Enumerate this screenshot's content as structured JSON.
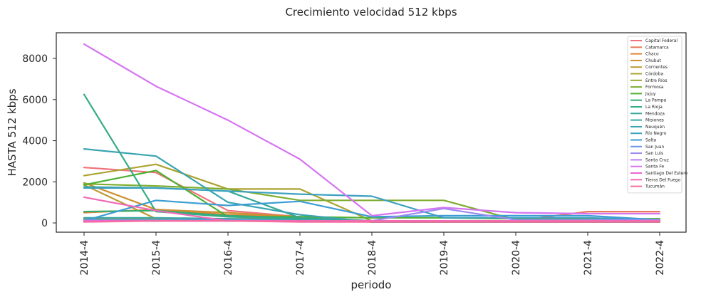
{
  "chart_data": {
    "type": "line",
    "title": "Crecimiento velocidad 512 kbps",
    "xlabel": "periodo",
    "ylabel": "HASTA 512 kbps",
    "ylim": [
      -450,
      9250
    ],
    "yticks": [
      0,
      2000,
      4000,
      6000,
      8000
    ],
    "grid": false,
    "legend_position": "top-right",
    "categories": [
      "2014-4",
      "2015-4",
      "2016-4",
      "2017-4",
      "2018-4",
      "2019-4",
      "2020-4",
      "2021-4",
      "2022-4"
    ],
    "series": [
      {
        "name": "Capital Federal",
        "color": "#f0727d",
        "values": [
          2700,
          2450,
          600,
          300,
          100,
          100,
          100,
          100,
          100
        ]
      },
      {
        "name": "Catamarca",
        "color": "#e8795a",
        "values": [
          100,
          100,
          100,
          100,
          100,
          100,
          100,
          550,
          550
        ]
      },
      {
        "name": "Chaco",
        "color": "#dc8737",
        "values": [
          500,
          650,
          400,
          300,
          50,
          50,
          50,
          50,
          50
        ]
      },
      {
        "name": "Chubut",
        "color": "#cd9032",
        "values": [
          1950,
          650,
          500,
          300,
          50,
          50,
          50,
          50,
          50
        ]
      },
      {
        "name": "Corrientes",
        "color": "#bd9a31",
        "values": [
          1850,
          200,
          200,
          200,
          50,
          50,
          50,
          50,
          50
        ]
      },
      {
        "name": "Córdoba",
        "color": "#aca231",
        "values": [
          2300,
          2850,
          1650,
          1650,
          100,
          100,
          100,
          100,
          100
        ]
      },
      {
        "name": "Entre Ríos",
        "color": "#99a931",
        "values": [
          200,
          200,
          100,
          100,
          100,
          100,
          100,
          100,
          100
        ]
      },
      {
        "name": "Formosa",
        "color": "#80ad31",
        "values": [
          1900,
          1800,
          1650,
          1100,
          1100,
          1100,
          150,
          150,
          150
        ]
      },
      {
        "name": "Jujuy",
        "color": "#4fb131",
        "values": [
          1850,
          2550,
          300,
          300,
          250,
          250,
          200,
          200,
          200
        ]
      },
      {
        "name": "La Pampa",
        "color": "#35ad6f",
        "values": [
          550,
          600,
          350,
          250,
          100,
          100,
          100,
          100,
          100
        ]
      },
      {
        "name": "La Rioja",
        "color": "#36ab87",
        "values": [
          6250,
          550,
          300,
          200,
          50,
          50,
          50,
          50,
          50
        ]
      },
      {
        "name": "Mendoza",
        "color": "#37a897",
        "values": [
          1750,
          1700,
          1550,
          250,
          100,
          100,
          100,
          100,
          100
        ]
      },
      {
        "name": "Misiones",
        "color": "#38a6a4",
        "values": [
          250,
          250,
          200,
          150,
          100,
          100,
          100,
          100,
          100
        ]
      },
      {
        "name": "Neuquén",
        "color": "#39a4b1",
        "values": [
          3600,
          3250,
          1000,
          400,
          50,
          50,
          50,
          50,
          50
        ]
      },
      {
        "name": "Río Negro",
        "color": "#3ba1c0",
        "values": [
          1700,
          1700,
          1550,
          1400,
          1300,
          250,
          250,
          250,
          150
        ]
      },
      {
        "name": "Salta",
        "color": "#3d9dd3",
        "values": [
          100,
          1100,
          850,
          1050,
          300,
          350,
          350,
          350,
          150
        ]
      },
      {
        "name": "San Juan",
        "color": "#6b94e9",
        "values": [
          150,
          150,
          150,
          100,
          100,
          100,
          100,
          100,
          100
        ]
      },
      {
        "name": "San Luis",
        "color": "#9a8af2",
        "values": [
          100,
          100,
          100,
          100,
          100,
          700,
          150,
          150,
          150
        ]
      },
      {
        "name": "Santa Cruz",
        "color": "#bb80f2",
        "values": [
          100,
          100,
          100,
          100,
          100,
          100,
          100,
          100,
          100
        ]
      },
      {
        "name": "Santa Fe",
        "color": "#d674f1",
        "values": [
          8700,
          6650,
          5000,
          3100,
          350,
          750,
          500,
          450,
          450
        ]
      },
      {
        "name": "Santiago Del Estero",
        "color": "#eb67d7",
        "values": [
          100,
          100,
          100,
          100,
          100,
          100,
          100,
          100,
          100
        ]
      },
      {
        "name": "Tierra Del Fuego",
        "color": "#f06ab7",
        "values": [
          1250,
          600,
          100,
          100,
          100,
          100,
          100,
          100,
          100
        ]
      },
      {
        "name": "Tucumán",
        "color": "#f36d9e",
        "values": [
          50,
          100,
          100,
          50,
          50,
          50,
          50,
          50,
          50
        ]
      }
    ]
  }
}
